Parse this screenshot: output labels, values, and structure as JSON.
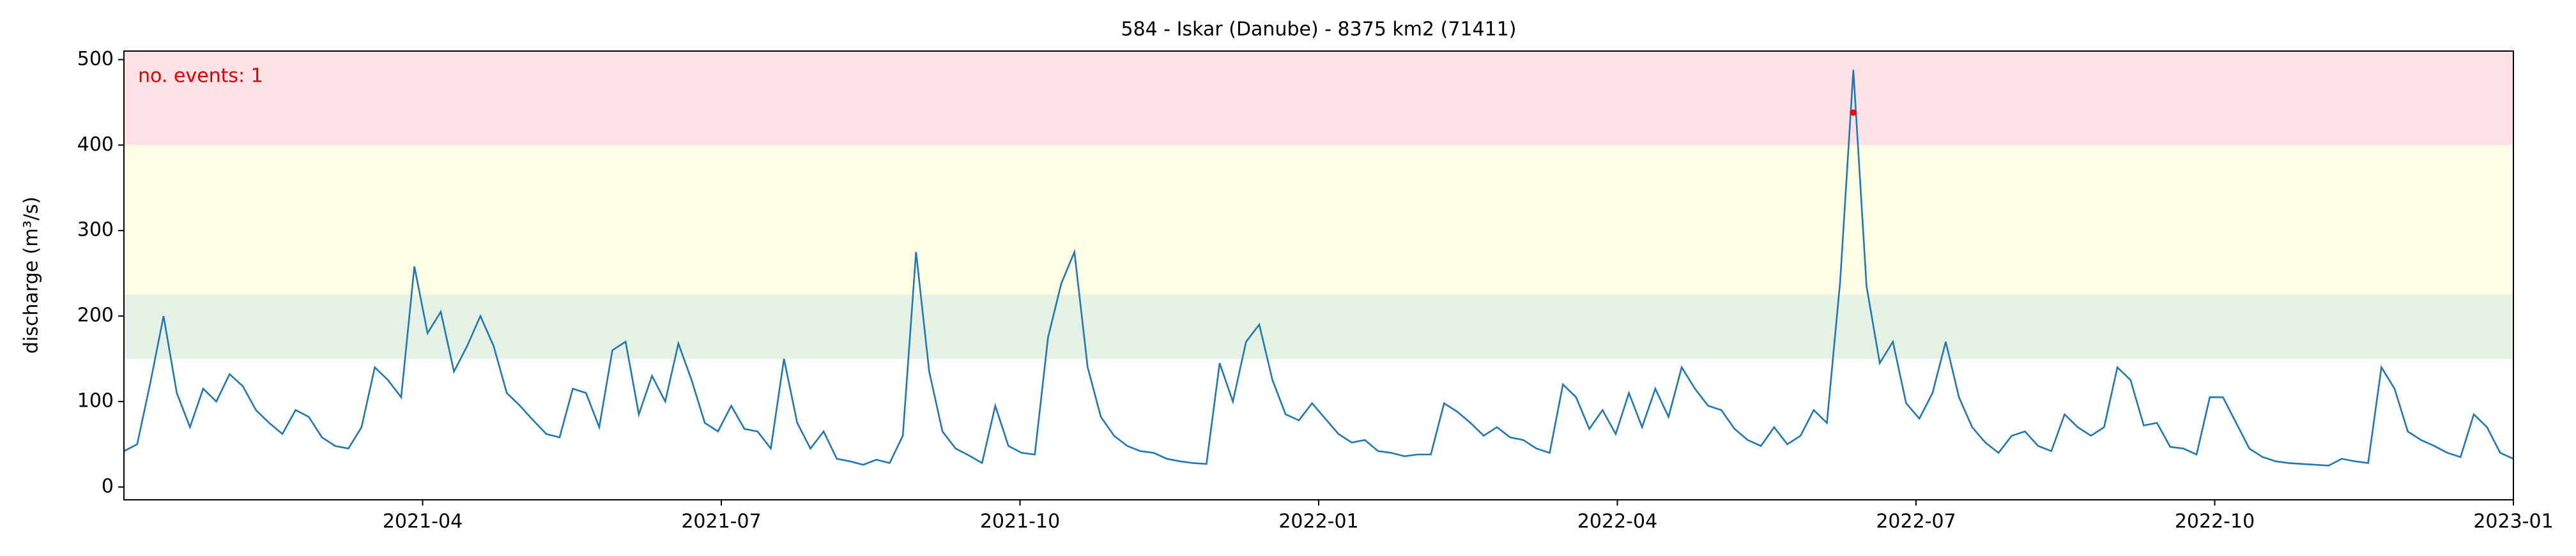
{
  "chart_data": {
    "type": "line",
    "title": "584 - Iskar (Danube) - 8375 km2 (71411)",
    "ylabel": "discharge (m³/s)",
    "annotation": "no. events: 1",
    "xlim": [
      "2021-01",
      "2023-01"
    ],
    "xticks": [
      "2021-04",
      "2021-07",
      "2021-10",
      "2022-01",
      "2022-04",
      "2022-07",
      "2022-10",
      "2023-01"
    ],
    "ylim": [
      -15,
      510
    ],
    "yticks": [
      0,
      100,
      200,
      300,
      400,
      500
    ],
    "bands": [
      {
        "ymin": 150,
        "ymax": 225,
        "color": "#e6f1e6"
      },
      {
        "ymin": 225,
        "ymax": 400,
        "color": "#fefee4"
      },
      {
        "ymin": 400,
        "ymax": 510,
        "color": "#fde2e5"
      }
    ],
    "series": [
      {
        "color": "#1f77b4",
        "values": [
          42,
          50,
          122,
          200,
          110,
          70,
          115,
          100,
          132,
          118,
          90,
          75,
          62,
          90,
          82,
          58,
          48,
          45,
          70,
          140,
          125,
          105,
          258,
          180,
          205,
          135,
          165,
          200,
          165,
          110,
          95,
          78,
          62,
          58,
          115,
          110,
          70,
          160,
          170,
          85,
          130,
          100,
          168,
          125,
          75,
          65,
          95,
          68,
          65,
          45,
          150,
          75,
          45,
          65,
          33,
          30,
          26,
          32,
          28,
          60,
          275,
          135,
          65,
          45,
          37,
          28,
          95,
          48,
          40,
          38,
          175,
          238,
          275,
          140,
          82,
          60,
          48,
          42,
          40,
          33,
          30,
          28,
          27,
          145,
          100,
          170,
          190,
          125,
          85,
          78,
          98,
          80,
          62,
          52,
          55,
          42,
          40,
          36,
          38,
          38,
          98,
          88,
          75,
          60,
          70,
          58,
          55,
          45,
          40,
          120,
          105,
          68,
          90,
          62,
          110,
          70,
          115,
          82,
          140,
          115,
          95,
          90,
          68,
          55,
          48,
          70,
          50,
          60,
          90,
          75,
          240,
          488,
          235,
          145,
          170,
          98,
          80,
          110,
          170,
          105,
          70,
          52,
          40,
          60,
          65,
          48,
          42,
          85,
          70,
          60,
          70,
          140,
          125,
          72,
          75,
          47,
          45,
          38,
          105,
          105,
          75,
          45,
          35,
          30,
          28,
          27,
          26,
          25,
          33,
          30,
          28,
          140,
          115,
          65,
          55,
          48,
          40,
          35,
          85,
          70,
          40,
          33
        ]
      },
      {
        "color": "#ff0000",
        "values": [
          null,
          null,
          null,
          null,
          null,
          null,
          null,
          null,
          null,
          null,
          null,
          null,
          null,
          null,
          null,
          null,
          null,
          null,
          null,
          null,
          null,
          null,
          null,
          null,
          null,
          null,
          null,
          null,
          null,
          null,
          null,
          null,
          null,
          null,
          null,
          null,
          null,
          null,
          null,
          null,
          null,
          null,
          null,
          null,
          null,
          null,
          null,
          null,
          null,
          null,
          null,
          null,
          null,
          null,
          null,
          null,
          null,
          null,
          null,
          null,
          null,
          null,
          null,
          null,
          null,
          null,
          null,
          null,
          null,
          null,
          null,
          null,
          null,
          null,
          null,
          null,
          null,
          null,
          null,
          null,
          null,
          null,
          null,
          null,
          null,
          null,
          null,
          null,
          null,
          null,
          null,
          null,
          null,
          null,
          null,
          null,
          null,
          null,
          null,
          null,
          null,
          null,
          null,
          null,
          null,
          null,
          null,
          null,
          null,
          null,
          null,
          null,
          null,
          null,
          null,
          null,
          null,
          null,
          null,
          null,
          null,
          null,
          null,
          null,
          null,
          null,
          null,
          null,
          null,
          null,
          null,
          438,
          null,
          null,
          null,
          null,
          null,
          null,
          null,
          null,
          null,
          null,
          null,
          null,
          null,
          null,
          null,
          null,
          null,
          null,
          null,
          null,
          null,
          null,
          null,
          null,
          null,
          null,
          null,
          null,
          null,
          null,
          null,
          null,
          null,
          null,
          null,
          null,
          null,
          null,
          null,
          null,
          null,
          null,
          null,
          null,
          null,
          null,
          null,
          null,
          null,
          null
        ]
      }
    ]
  }
}
